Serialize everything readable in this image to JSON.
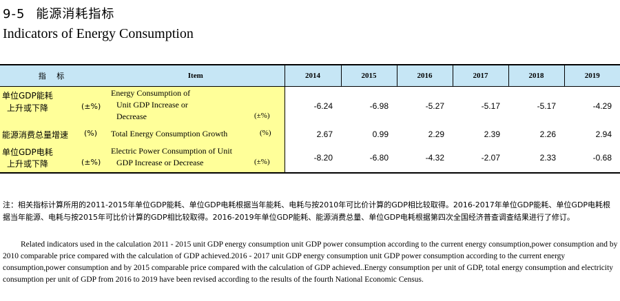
{
  "title": {
    "number": "9-5",
    "cn": "能源消耗指标",
    "en": "Indicators of Energy Consumption"
  },
  "header": {
    "indicator_cn": "指 标",
    "item": "Item",
    "years": [
      "2014",
      "2015",
      "2016",
      "2017",
      "2018",
      "2019"
    ]
  },
  "rows": [
    {
      "cn_line1": "单位GDP能耗",
      "cn_line2": "上升或下降",
      "cn_unit": "(±%)",
      "en_line1": "Energy Consumption of",
      "en_line2": "Unit GDP Increase or",
      "en_line3": "Decrease",
      "en_unit": "(±%)",
      "values": [
        "-6.24",
        "-6.98",
        "-5.27",
        "-5.17",
        "-5.17",
        "-4.29"
      ]
    },
    {
      "cn_line1": "能源消费总量增速",
      "cn_unit": "(%)",
      "en_line1": "Total Energy Consumption Growth",
      "en_unit": "(%)",
      "values": [
        "2.67",
        "0.99",
        "2.29",
        "2.39",
        "2.26",
        "2.94"
      ]
    },
    {
      "cn_line1": "单位GDP电耗",
      "cn_line2": "上升或下降",
      "cn_unit": "(±%)",
      "en_line1": "Electric Power Consumption of Unit",
      "en_line2": "GDP Increase or Decrease",
      "en_unit": "(±%)",
      "values": [
        "-8.20",
        "-6.80",
        "-4.32",
        "-2.07",
        "2.33",
        "-0.68"
      ]
    }
  ],
  "notes": {
    "cn": "注：相关指标计算所用的2011-2015年单位GDP能耗、单位GDP电耗根据当年能耗、电耗与按2010年可比价计算的GDP相比较取得。2016-2017年单位GDP能耗、单位GDP电耗根据当年能源、电耗与按2015年可比价计算的GDP相比较取得。2016-2019年单位GDP能耗、能源消费总量、单位GDP电耗根据第四次全国经济普查调查结果进行了修订。",
    "en": "Related indicators used in the calculation 2011 - 2015 unit GDP energy consumption unit GDP power consumption according to the current energy consumption,power consumption and by 2010 comparable price compared with the calculation of GDP achieved.2016 - 2017 unit GDP energy consumption unit GDP power consumption according to the current energy consumption,power consumption and by 2015 comparable price compared with the calculation of GDP achieved..Energy consumption per unit of GDP, total energy consumption and electricity consumption per unit of GDP from 2016 to 2019 have been revised according to the results of the fourth National Economic Census."
  }
}
